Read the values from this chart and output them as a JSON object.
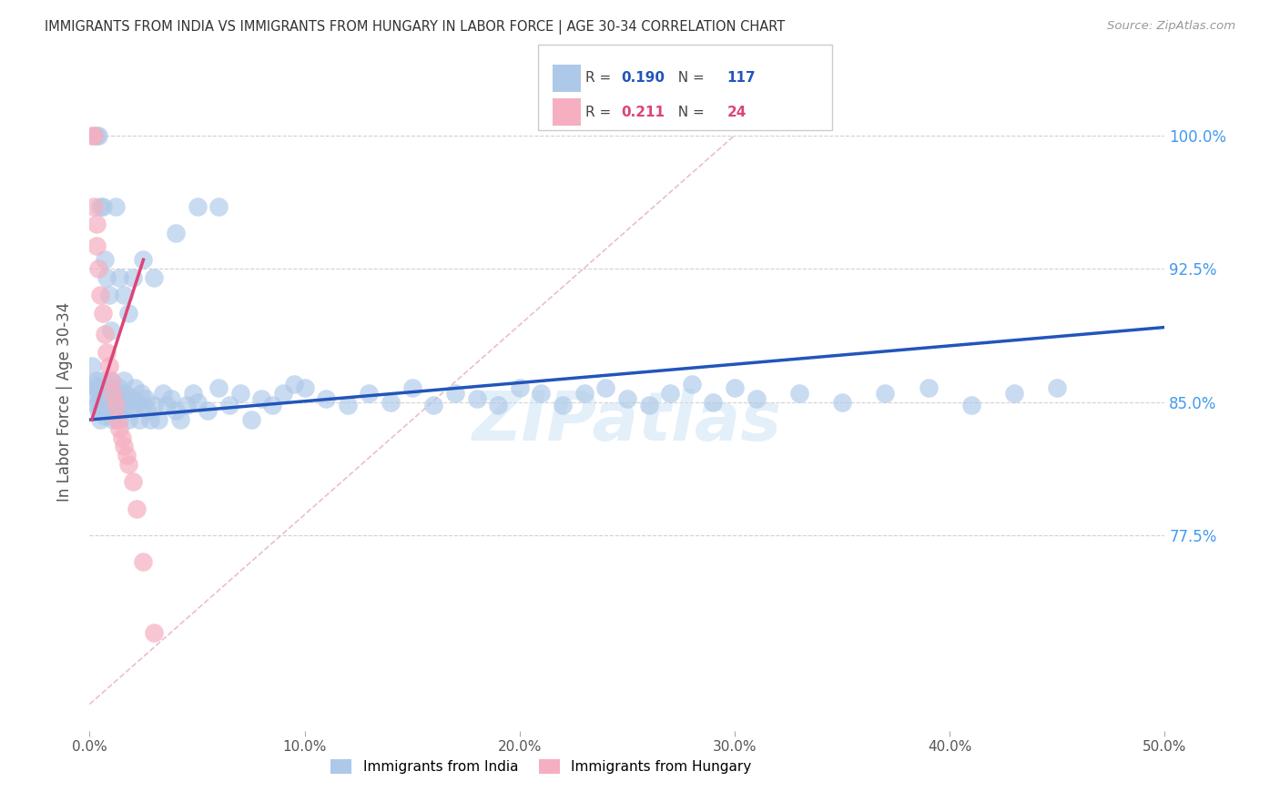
{
  "title": "IMMIGRANTS FROM INDIA VS IMMIGRANTS FROM HUNGARY IN LABOR FORCE | AGE 30-34 CORRELATION CHART",
  "source": "Source: ZipAtlas.com",
  "ylabel": "In Labor Force | Age 30-34",
  "x_tick_labels": [
    "0.0%",
    "10.0%",
    "20.0%",
    "30.0%",
    "40.0%",
    "50.0%"
  ],
  "x_tick_values": [
    0.0,
    0.1,
    0.2,
    0.3,
    0.4,
    0.5
  ],
  "y_tick_labels": [
    "77.5%",
    "85.0%",
    "92.5%",
    "100.0%"
  ],
  "y_tick_values": [
    0.775,
    0.85,
    0.925,
    1.0
  ],
  "xlim": [
    0.0,
    0.5
  ],
  "ylim": [
    0.665,
    1.035
  ],
  "india_R": 0.19,
  "india_N": 117,
  "hungary_R": 0.211,
  "hungary_N": 24,
  "india_color": "#adc8e8",
  "india_line_color": "#2255bb",
  "hungary_color": "#f5afc0",
  "hungary_line_color": "#dd4477",
  "diag_color": "#e8b8c8",
  "legend_label_india": "Immigrants from India",
  "legend_label_hungary": "Immigrants from Hungary",
  "india_x": [
    0.001,
    0.002,
    0.002,
    0.003,
    0.003,
    0.003,
    0.004,
    0.004,
    0.004,
    0.005,
    0.005,
    0.005,
    0.005,
    0.006,
    0.006,
    0.006,
    0.007,
    0.007,
    0.007,
    0.008,
    0.008,
    0.008,
    0.009,
    0.009,
    0.01,
    0.01,
    0.01,
    0.011,
    0.011,
    0.012,
    0.012,
    0.013,
    0.013,
    0.014,
    0.014,
    0.015,
    0.015,
    0.016,
    0.016,
    0.017,
    0.018,
    0.019,
    0.02,
    0.021,
    0.022,
    0.023,
    0.024,
    0.025,
    0.026,
    0.027,
    0.028,
    0.03,
    0.032,
    0.034,
    0.036,
    0.038,
    0.04,
    0.042,
    0.045,
    0.048,
    0.05,
    0.055,
    0.06,
    0.065,
    0.07,
    0.075,
    0.08,
    0.085,
    0.09,
    0.095,
    0.1,
    0.11,
    0.12,
    0.13,
    0.14,
    0.15,
    0.16,
    0.17,
    0.18,
    0.19,
    0.2,
    0.21,
    0.22,
    0.23,
    0.24,
    0.25,
    0.26,
    0.27,
    0.28,
    0.29,
    0.3,
    0.31,
    0.33,
    0.35,
    0.37,
    0.39,
    0.41,
    0.43,
    0.45,
    0.003,
    0.004,
    0.005,
    0.006,
    0.007,
    0.008,
    0.009,
    0.01,
    0.012,
    0.014,
    0.016,
    0.018,
    0.02,
    0.025,
    0.03,
    0.04,
    0.05,
    0.06
  ],
  "india_y": [
    0.87,
    0.855,
    0.86,
    0.848,
    0.858,
    0.862,
    0.85,
    0.845,
    0.856,
    0.852,
    0.848,
    0.84,
    0.858,
    0.853,
    0.847,
    0.862,
    0.855,
    0.842,
    0.85,
    0.858,
    0.848,
    0.853,
    0.847,
    0.86,
    0.855,
    0.848,
    0.862,
    0.85,
    0.84,
    0.855,
    0.848,
    0.852,
    0.845,
    0.858,
    0.84,
    0.853,
    0.847,
    0.855,
    0.862,
    0.848,
    0.84,
    0.853,
    0.847,
    0.858,
    0.85,
    0.84,
    0.855,
    0.848,
    0.852,
    0.845,
    0.84,
    0.848,
    0.84,
    0.855,
    0.848,
    0.852,
    0.845,
    0.84,
    0.848,
    0.855,
    0.85,
    0.845,
    0.858,
    0.848,
    0.855,
    0.84,
    0.852,
    0.848,
    0.855,
    0.86,
    0.858,
    0.852,
    0.848,
    0.855,
    0.85,
    0.858,
    0.848,
    0.855,
    0.852,
    0.848,
    0.858,
    0.855,
    0.848,
    0.855,
    0.858,
    0.852,
    0.848,
    0.855,
    0.86,
    0.85,
    0.858,
    0.852,
    0.855,
    0.85,
    0.855,
    0.858,
    0.848,
    0.855,
    0.858,
    1.0,
    1.0,
    0.96,
    0.96,
    0.93,
    0.92,
    0.91,
    0.89,
    0.96,
    0.92,
    0.91,
    0.9,
    0.92,
    0.93,
    0.92,
    0.945,
    0.96,
    0.96
  ],
  "hungary_x": [
    0.001,
    0.002,
    0.002,
    0.003,
    0.003,
    0.004,
    0.005,
    0.006,
    0.007,
    0.008,
    0.009,
    0.01,
    0.011,
    0.012,
    0.013,
    0.014,
    0.015,
    0.016,
    0.017,
    0.018,
    0.02,
    0.022,
    0.025,
    0.03
  ],
  "hungary_y": [
    1.0,
    1.0,
    0.96,
    0.95,
    0.938,
    0.925,
    0.91,
    0.9,
    0.888,
    0.878,
    0.87,
    0.862,
    0.855,
    0.848,
    0.84,
    0.835,
    0.83,
    0.825,
    0.82,
    0.815,
    0.805,
    0.79,
    0.76,
    0.72
  ],
  "india_trend_x0": 0.0,
  "india_trend_x1": 0.5,
  "india_trend_y0": 0.84,
  "india_trend_y1": 0.892,
  "hungary_trend_x0": 0.001,
  "hungary_trend_x1": 0.025,
  "hungary_trend_y0": 0.84,
  "hungary_trend_y1": 0.93,
  "watermark": "ZIPatlas",
  "background_color": "#ffffff",
  "grid_color": "#cccccc",
  "title_color": "#333333",
  "tick_label_color_right": "#4499ee",
  "tick_label_color_bottom": "#555555"
}
